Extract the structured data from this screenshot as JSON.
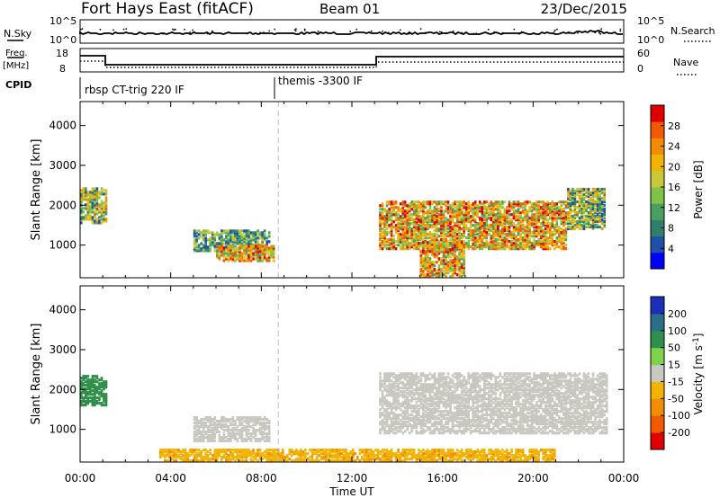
{
  "header": {
    "station": "Fort Hays East (fitACF)",
    "beam": "Beam 01",
    "date": "23/Dec/2015"
  },
  "panels": {
    "nsky_label": "N.Sky",
    "nsearch_label": "N.Search",
    "noise_ticks_left": [
      "10^5",
      "10^0"
    ],
    "noise_ticks_right": [
      "10^5",
      "10^0"
    ],
    "freq_label_top": "Freq.",
    "freq_label_bottom": "[MHz]",
    "freq_ticks": [
      "18",
      "8"
    ],
    "nave_label": "Nave",
    "nave_ticks": [
      "60",
      "0"
    ],
    "cpid_label": "CPID",
    "cpid_entries": [
      "rbsp CT-trig 220 IF",
      "themis -3300 IF"
    ]
  },
  "colorbars": {
    "power": {
      "label": "Power [dB]",
      "ticks": [
        "28",
        "24",
        "20",
        "16",
        "12",
        "8",
        "4"
      ],
      "colors": [
        "#0000ff",
        "#1f4fa8",
        "#2f7f6b",
        "#4a9e5f",
        "#7fc24a",
        "#c8c83a",
        "#f2b400",
        "#f28c00",
        "#f25a00",
        "#e00000"
      ]
    },
    "velocity": {
      "label": "Velocity [m s^-1]",
      "ticks": [
        "200",
        "100",
        "50",
        "15",
        "-15",
        "-50",
        "-100",
        "-200"
      ],
      "colors": [
        "#1b2fb8",
        "#2a6e8c",
        "#2f8f4a",
        "#7fd34a",
        "#c8c8c0",
        "#f2b400",
        "#f28c00",
        "#f25a00",
        "#e00000"
      ]
    }
  },
  "chart_data": [
    {
      "type": "heatmap",
      "title": "Power",
      "ylabel": "Slant Range [km]",
      "xlabel": "",
      "x_ticks": [
        "00:00",
        "04:00",
        "08:00",
        "12:00",
        "16:00",
        "20:00",
        "00:00"
      ],
      "xlim_hours": [
        0,
        24
      ],
      "ylim": [
        180,
        4600
      ],
      "y_ticks": [
        1000,
        2000,
        3000,
        4000
      ],
      "marker_time_hours": 8.75,
      "echo_regions": [
        {
          "t0": 0.0,
          "t1": 1.2,
          "r0": 1550,
          "r1": 2450,
          "level": "mid"
        },
        {
          "t0": 5.0,
          "t1": 8.3,
          "r0": 850,
          "r1": 1350,
          "level": "low"
        },
        {
          "t0": 6.0,
          "t1": 8.5,
          "r0": 600,
          "r1": 1000,
          "level": "high"
        },
        {
          "t0": 13.2,
          "t1": 21.5,
          "r0": 900,
          "r1": 2100,
          "level": "high"
        },
        {
          "t0": 21.5,
          "t1": 23.2,
          "r0": 1400,
          "r1": 2400,
          "level": "mid"
        },
        {
          "t0": 15.0,
          "t1": 17.0,
          "r0": 200,
          "r1": 1100,
          "level": "high"
        }
      ]
    },
    {
      "type": "heatmap",
      "title": "Velocity",
      "ylabel": "Slant Range [km]",
      "xlabel": "Time UT",
      "x_ticks": [
        "00:00",
        "04:00",
        "08:00",
        "12:00",
        "16:00",
        "20:00",
        "00:00"
      ],
      "xlim_hours": [
        0,
        24
      ],
      "ylim": [
        180,
        4600
      ],
      "y_ticks": [
        1000,
        2000,
        3000,
        4000
      ],
      "marker_time_hours": 8.75,
      "echo_regions": [
        {
          "t0": 0.0,
          "t1": 1.2,
          "r0": 1600,
          "r1": 2350,
          "velocity": 60
        },
        {
          "t0": 5.0,
          "t1": 8.3,
          "r0": 700,
          "r1": 1300,
          "velocity": 0
        },
        {
          "t0": 13.2,
          "t1": 23.3,
          "r0": 900,
          "r1": 2400,
          "velocity": 0
        },
        {
          "t0": 3.5,
          "t1": 21.0,
          "r0": 200,
          "r1": 500,
          "velocity": -40
        }
      ]
    }
  ]
}
